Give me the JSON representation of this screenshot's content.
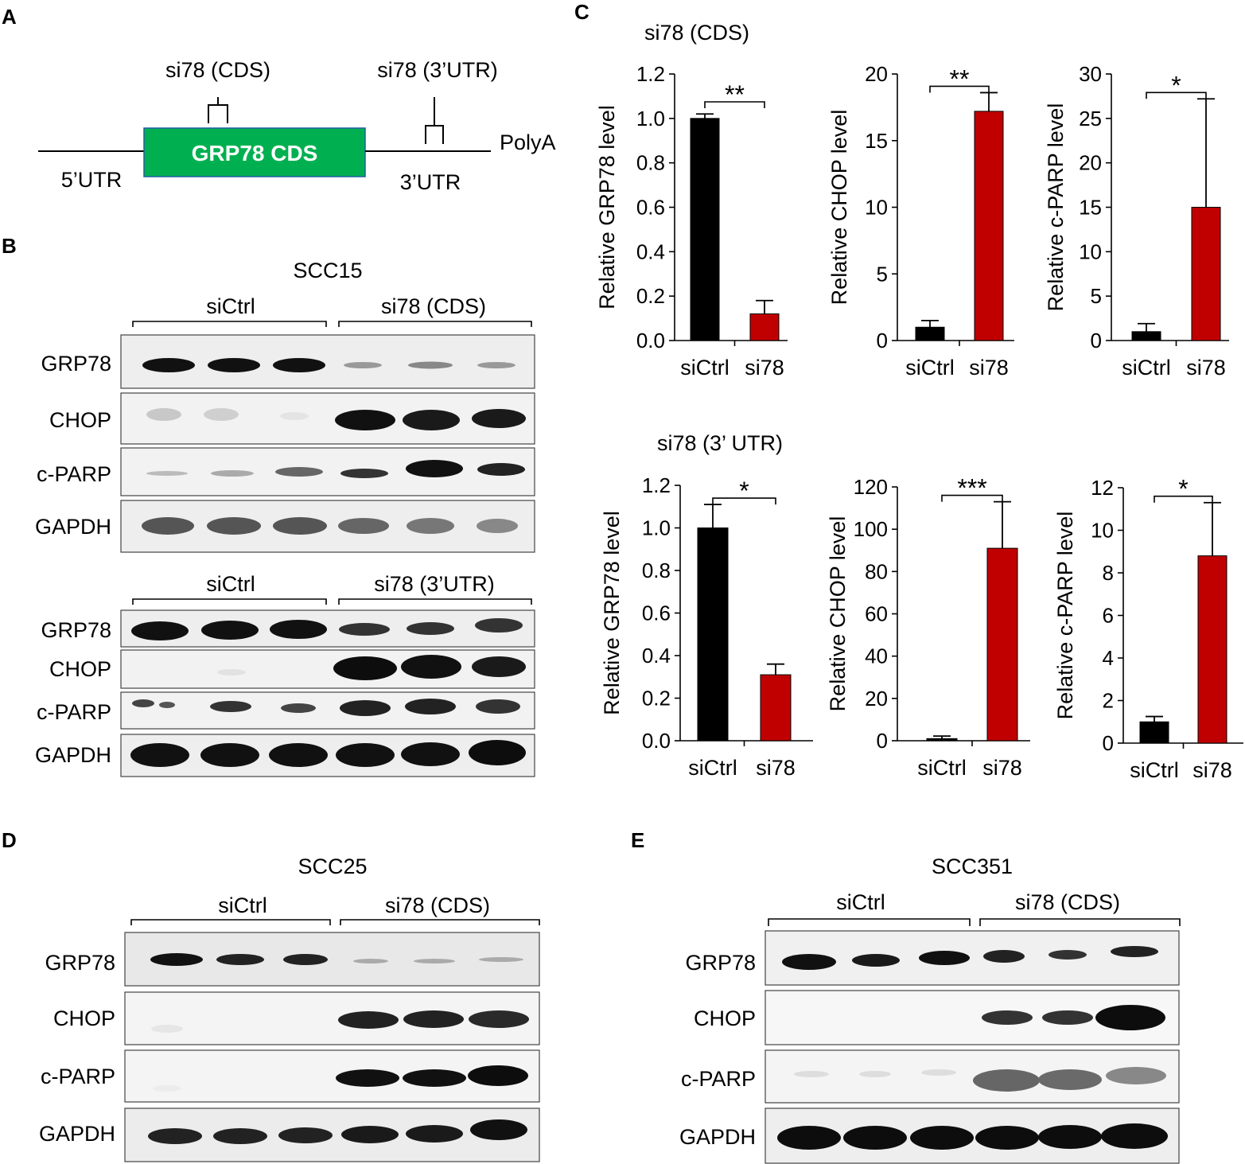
{
  "panels": {
    "A": {
      "label": "A",
      "cds_box": "GRP78 CDS",
      "utr5": "5’UTR",
      "utr3": "3’UTR",
      "polya": "PolyA",
      "site_cds": "si78 (CDS)",
      "site_utr": "si78 (3’UTR)",
      "cds_color": "#00b050"
    },
    "B": {
      "label": "B",
      "cell_line": "SCC15",
      "blot1": {
        "group1": "siCtrl",
        "group2": "si78 (CDS)"
      },
      "blot2": {
        "group1": "siCtrl",
        "group2": "si78 (3’UTR)"
      },
      "rows": [
        "GRP78",
        "CHOP",
        "c-PARP",
        "GAPDH"
      ]
    },
    "C": {
      "label": "C",
      "heading_top": "si78 (CDS)",
      "heading_bottom": "si78 (3’ UTR)"
    },
    "D": {
      "label": "D",
      "cell_line": "SCC25",
      "group1": "siCtrl",
      "group2": "si78 (CDS)",
      "rows": [
        "GRP78",
        "CHOP",
        "c-PARP",
        "GAPDH"
      ]
    },
    "E": {
      "label": "E",
      "cell_line": "SCC351",
      "group1": "siCtrl",
      "group2": "si78 (CDS)",
      "rows": [
        "GRP78",
        "CHOP",
        "c-PARP",
        "GAPDH"
      ]
    }
  },
  "chart_data": [
    {
      "type": "bar",
      "categories": [
        "siCtrl",
        "si78"
      ],
      "values": [
        1.0,
        0.12
      ],
      "errors": [
        0.02,
        0.06
      ],
      "ylabel": "Relative GRP78 level",
      "ylim": [
        0,
        1.2
      ],
      "yticks": [
        "0.0",
        "0.2",
        "0.4",
        "0.6",
        "0.8",
        "1.0",
        "1.2"
      ],
      "significance": "**",
      "colors": [
        "#000000",
        "#c00000"
      ]
    },
    {
      "type": "bar",
      "categories": [
        "siCtrl",
        "si78"
      ],
      "values": [
        1.0,
        17.2
      ],
      "errors": [
        0.5,
        1.4
      ],
      "ylabel": "Relative CHOP level",
      "ylim": [
        0,
        20
      ],
      "yticks": [
        "0",
        "5",
        "10",
        "15",
        "20"
      ],
      "significance": "**",
      "colors": [
        "#000000",
        "#c00000"
      ]
    },
    {
      "type": "bar",
      "categories": [
        "siCtrl",
        "si78"
      ],
      "values": [
        1.0,
        15.0
      ],
      "errors": [
        0.9,
        12.2
      ],
      "ylabel": "Relative c-PARP level",
      "ylim": [
        0,
        30
      ],
      "yticks": [
        "0",
        "5",
        "10",
        "15",
        "20",
        "25",
        "30"
      ],
      "significance": "*",
      "colors": [
        "#000000",
        "#c00000"
      ]
    },
    {
      "type": "bar",
      "categories": [
        "siCtrl",
        "si78"
      ],
      "values": [
        1.0,
        0.31
      ],
      "errors": [
        0.11,
        0.05
      ],
      "ylabel": "Relative GRP78 level",
      "ylim": [
        0,
        1.2
      ],
      "yticks": [
        "0.0",
        "0.2",
        "0.4",
        "0.6",
        "0.8",
        "1.0",
        "1.2"
      ],
      "significance": "*",
      "colors": [
        "#000000",
        "#c00000"
      ]
    },
    {
      "type": "bar",
      "categories": [
        "siCtrl",
        "si78"
      ],
      "values": [
        1.0,
        91.0
      ],
      "errors": [
        1.2,
        22.0
      ],
      "ylabel": "Relative CHOP level",
      "ylim": [
        0,
        120
      ],
      "yticks": [
        "0",
        "20",
        "40",
        "60",
        "80",
        "100",
        "120"
      ],
      "significance": "***",
      "colors": [
        "#000000",
        "#c00000"
      ]
    },
    {
      "type": "bar",
      "categories": [
        "siCtrl",
        "si78"
      ],
      "values": [
        1.0,
        8.8
      ],
      "errors": [
        0.25,
        2.5
      ],
      "ylabel": "Relative c-PARP level",
      "ylim": [
        0,
        12
      ],
      "yticks": [
        "0",
        "2",
        "4",
        "6",
        "8",
        "10",
        "12"
      ],
      "significance": "*",
      "colors": [
        "#000000",
        "#c00000"
      ]
    }
  ]
}
